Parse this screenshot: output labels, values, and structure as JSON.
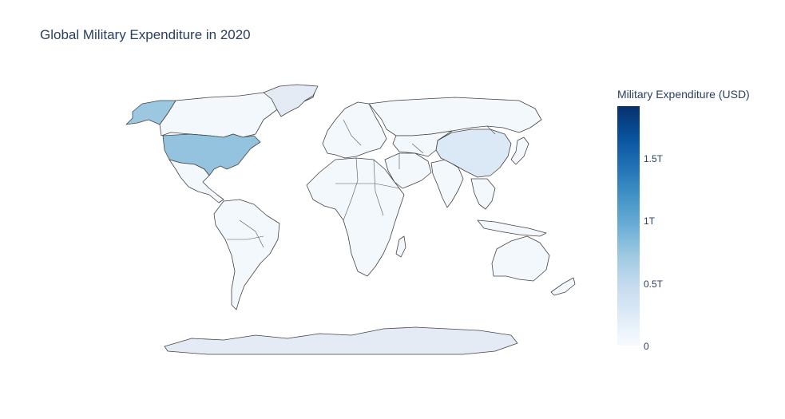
{
  "title": "Global Military Expenditure in 2020",
  "colorbar": {
    "title": "Military Expenditure (USD)",
    "ticks": [
      {
        "label": "1.5T",
        "value": 1500000000000.0
      },
      {
        "label": "1T",
        "value": 1000000000000.0
      },
      {
        "label": "0.5T",
        "value": 500000000000.0
      },
      {
        "label": "0",
        "value": 0
      }
    ],
    "range": [
      0,
      1900000000000.0
    ],
    "colorscale": "Blues"
  },
  "map_data": {
    "type": "choropleth",
    "projection": "natural earth",
    "highlighted_regions": [
      {
        "name": "United States",
        "level": 0.47
      },
      {
        "name": "China",
        "level": 0.13
      },
      {
        "name": "Greenland",
        "level": 0.06
      },
      {
        "name": "Antarctica",
        "level": 0.06
      }
    ],
    "default_level": 0.02
  }
}
